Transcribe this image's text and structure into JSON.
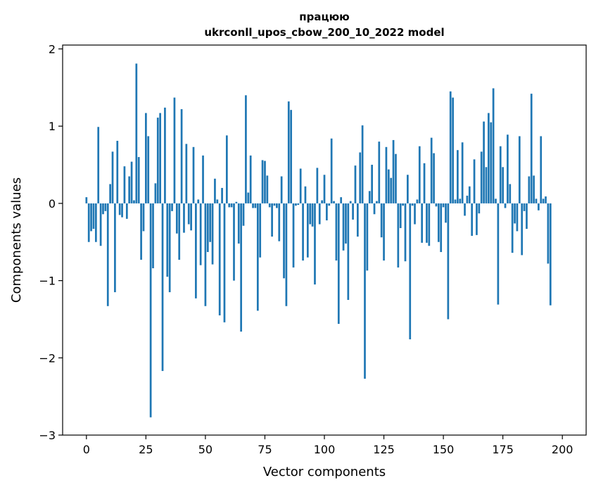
{
  "chart_data": {
    "type": "bar",
    "title_line1": "працюю",
    "title_line2": "ukrconll_upos_cbow_200_10_2022 model",
    "xlabel": "Vector components",
    "ylabel": "Components values",
    "xlim": [
      -10,
      210
    ],
    "ylim": [
      -3,
      2.05
    ],
    "xticks": [
      0,
      25,
      50,
      75,
      100,
      125,
      150,
      175,
      200
    ],
    "yticks": [
      -3,
      -2,
      -1,
      0,
      1,
      2
    ],
    "ytick_labels": [
      "−3",
      "−2",
      "−1",
      "0",
      "1",
      "2"
    ],
    "bar_color": "#1f77b4",
    "grid": false,
    "values": [
      0.08,
      -0.5,
      -0.36,
      -0.33,
      -0.5,
      0.99,
      -0.55,
      -0.14,
      -0.1,
      -1.33,
      0.25,
      0.67,
      -1.15,
      0.81,
      -0.15,
      -0.18,
      0.48,
      -0.2,
      0.35,
      0.54,
      0.04,
      1.81,
      0.6,
      -0.73,
      -0.36,
      1.17,
      0.87,
      -2.77,
      -0.84,
      0.26,
      1.11,
      1.17,
      -2.17,
      1.24,
      -0.95,
      -1.15,
      -0.1,
      1.37,
      -0.39,
      -0.73,
      1.22,
      -0.38,
      0.77,
      -0.27,
      -0.35,
      0.73,
      -1.23,
      0.05,
      -0.8,
      0.62,
      -1.33,
      -0.63,
      -0.5,
      -0.79,
      0.32,
      0.05,
      -1.45,
      0.2,
      -1.54,
      0.88,
      -0.05,
      -0.05,
      -1.0,
      0.02,
      -0.52,
      -1.66,
      -0.29,
      1.4,
      0.14,
      0.62,
      -0.06,
      -0.06,
      -1.39,
      -0.7,
      0.56,
      0.55,
      0.36,
      -0.05,
      -0.43,
      -0.03,
      -0.06,
      -0.49,
      0.35,
      -0.97,
      -1.33,
      1.32,
      1.21,
      -0.83,
      -0.03,
      -0.02,
      0.45,
      -0.74,
      0.22,
      -0.7,
      -0.27,
      -0.3,
      -1.05,
      0.46,
      -0.27,
      0.04,
      0.37,
      -0.22,
      -0.03,
      0.84,
      0.03,
      -0.74,
      -1.56,
      0.08,
      -0.61,
      -0.52,
      -1.25,
      0.03,
      -0.21,
      0.49,
      -0.43,
      0.66,
      1.01,
      -2.27,
      -0.87,
      0.16,
      0.5,
      -0.14,
      0.03,
      0.8,
      -0.44,
      -0.74,
      0.73,
      0.44,
      0.33,
      0.82,
      0.64,
      -0.83,
      -0.32,
      -0.03,
      -0.75,
      0.37,
      -1.76,
      -0.03,
      -0.27,
      0.05,
      0.74,
      -0.51,
      0.52,
      -0.51,
      -0.55,
      0.85,
      0.65,
      -0.04,
      -0.5,
      -0.63,
      -0.05,
      -0.25,
      -1.5,
      1.45,
      1.37,
      0.05,
      0.69,
      0.06,
      0.79,
      -0.16,
      0.1,
      0.22,
      -0.42,
      0.57,
      -0.41,
      -0.13,
      0.67,
      1.06,
      0.47,
      1.17,
      1.05,
      1.49,
      0.06,
      -1.31,
      0.74,
      0.47,
      -0.06,
      0.89,
      0.25,
      -0.64,
      -0.26,
      -0.36,
      0.87,
      -0.67,
      -0.1,
      -0.33,
      0.35,
      1.42,
      0.36,
      0.06,
      -0.09,
      0.87,
      0.06,
      0.09,
      -0.78,
      -1.32
    ]
  }
}
